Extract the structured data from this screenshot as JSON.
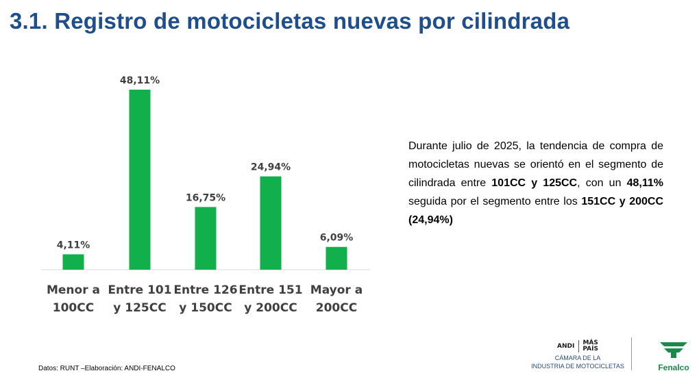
{
  "title": "3.1. Registro de motocicletas nuevas por cilindrada",
  "chart_data": {
    "type": "bar",
    "categories": [
      [
        "Menor a",
        "100CC"
      ],
      [
        "Entre 101",
        "y 125CC"
      ],
      [
        "Entre 126",
        "y 150CC"
      ],
      [
        "Entre 151",
        "y 200CC"
      ],
      [
        "Mayor a",
        "200CC"
      ]
    ],
    "values": [
      4.11,
      48.11,
      16.75,
      24.94,
      6.09
    ],
    "value_labels": [
      "4,11%",
      "48,11%",
      "16,75%",
      "24,94%",
      "6,09%"
    ],
    "bar_color": "#12b04d",
    "ylim": [
      0,
      48.11
    ],
    "grid": false,
    "legend": "none"
  },
  "description": {
    "p1": "Durante julio de 2025, la tendencia de compra de motocicletas nuevas se orientó en el segmento de cilindrada entre ",
    "b1": "101CC y 125CC",
    "p2": ", con un ",
    "b2": "48,11%",
    "p3": " seguida por el segmento entre los ",
    "b3": "151CC y 200CC (24,94%)"
  },
  "source": "Datos: RUNT –Elaboración: ANDI-FENALCO",
  "logos": {
    "andi_mark": "ANDI",
    "andi_mas_line1": "MÁS",
    "andi_mas_line2": "PAÍS",
    "andi_line1": "CÁMARA DE LA",
    "andi_line2": "INDUSTRIA DE MOTOCICLETAS",
    "fenalco_name": "Fenalco",
    "fenalco_color": "#1a8a4a"
  }
}
